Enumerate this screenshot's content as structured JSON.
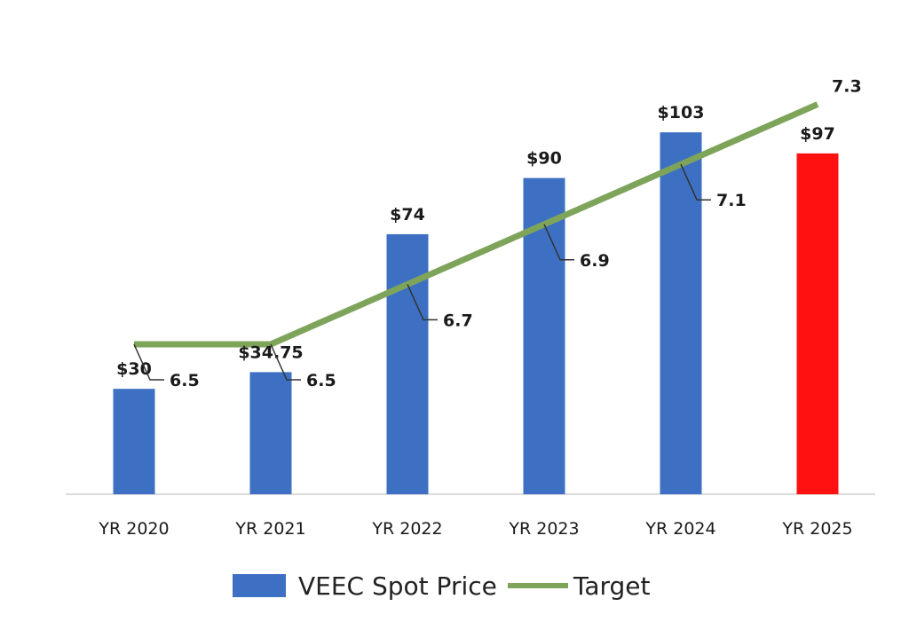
{
  "chart_data": {
    "type": "bar",
    "categories": [
      "YR 2020",
      "YR 2021",
      "YR 2022",
      "YR 2023",
      "YR 2024",
      "YR 2025"
    ],
    "series": [
      {
        "name": "VEEC Spot Price",
        "kind": "bar",
        "values": [
          30,
          34.75,
          74,
          90,
          103,
          97
        ],
        "labels": [
          "$30",
          "$34.75",
          "$74",
          "$90",
          "$103",
          "$97"
        ],
        "colors": [
          "#3d70c2",
          "#3d70c2",
          "#3d70c2",
          "#3d70c2",
          "#3d70c2",
          "#ff1111"
        ]
      },
      {
        "name": "Target",
        "kind": "line",
        "values": [
          6.5,
          6.5,
          6.7,
          6.9,
          7.1,
          7.3
        ],
        "labels": [
          "6.5",
          "6.5",
          "6.7",
          "6.9",
          "7.1",
          "7.3"
        ],
        "color": "#7ea45a",
        "highlight_color": "#e0141e"
      }
    ],
    "legend": {
      "position": "bottom",
      "items": [
        {
          "label": "VEEC Spot Price",
          "color": "#3d70c2",
          "shape": "bar"
        },
        {
          "label": "Target",
          "color": "#7ea45a",
          "shape": "line"
        }
      ]
    },
    "grid": false
  }
}
